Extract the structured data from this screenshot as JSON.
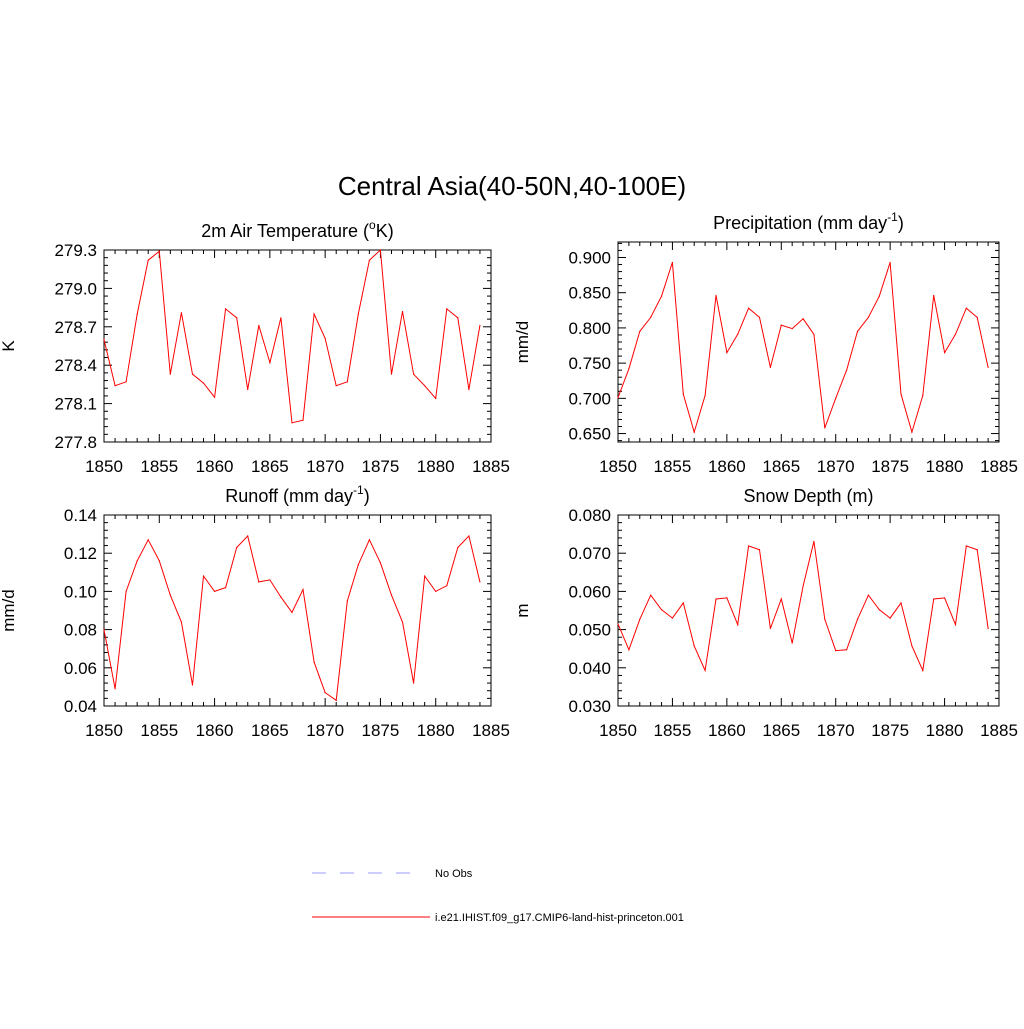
{
  "title": "Central Asia(40-50N,40-100E)",
  "series_color": "#ff0000",
  "obs_color": "#9999ff",
  "legend": {
    "obs_label": "No Obs",
    "model_label": "i.e21.IHIST.f09_g17.CMIP6-land-hist-princeton.001"
  },
  "chart_data": [
    {
      "type": "line",
      "title_main": "2m Air Temperature (",
      "title_sup": "o",
      "title_end": "K)",
      "ylabel": "K",
      "xlim": [
        1850,
        1885
      ],
      "ylim": [
        277.8,
        279.3
      ],
      "xticks": [
        1850,
        1855,
        1860,
        1865,
        1870,
        1875,
        1880,
        1885
      ],
      "xtick_labels": [
        "1850",
        "1855",
        "1860",
        "1865",
        "1870",
        "1875",
        "1880",
        "1885"
      ],
      "yticks": [
        277.8,
        278.1,
        278.4,
        278.7,
        279.0,
        279.3
      ],
      "ytick_labels": [
        "277.8",
        "278.1",
        "278.4",
        "278.7",
        "279.0",
        "279.3"
      ],
      "series": [
        {
          "x": [
            1850,
            1851,
            1852,
            1853,
            1854,
            1855,
            1856,
            1857,
            1858,
            1859,
            1860,
            1861,
            1862,
            1863,
            1864,
            1865,
            1866,
            1867,
            1868,
            1869,
            1870,
            1871,
            1872,
            1873,
            1874,
            1875,
            1876,
            1877,
            1878,
            1879,
            1880,
            1881,
            1882,
            1883,
            1884
          ],
          "values": [
            278.6,
            278.24,
            278.27,
            278.8,
            279.22,
            279.29,
            278.33,
            278.81,
            278.33,
            278.26,
            278.15,
            278.84,
            278.77,
            278.21,
            278.71,
            278.42,
            278.77,
            277.95,
            277.97,
            278.8,
            278.61,
            278.24,
            278.27,
            278.8,
            279.22,
            279.3,
            278.33,
            278.82,
            278.33,
            278.24,
            278.14,
            278.84,
            278.77,
            278.21,
            278.71
          ]
        }
      ]
    },
    {
      "type": "line",
      "title_main": "Precipitation (mm day",
      "title_sup": "-1",
      "title_end": ")",
      "ylabel": "mm/d",
      "xlim": [
        1850,
        1885
      ],
      "ylim": [
        0.638,
        0.922
      ],
      "xticks": [
        1850,
        1855,
        1860,
        1865,
        1870,
        1875,
        1880,
        1885
      ],
      "xtick_labels": [
        "1850",
        "1855",
        "1860",
        "1865",
        "1870",
        "1875",
        "1880",
        "1885"
      ],
      "yticks": [
        0.65,
        0.7,
        0.75,
        0.8,
        0.85,
        0.9
      ],
      "ytick_labels": [
        "0.650",
        "0.700",
        "0.750",
        "0.800",
        "0.850",
        "0.900"
      ],
      "series": [
        {
          "x": [
            1850,
            1851,
            1852,
            1853,
            1854,
            1855,
            1856,
            1857,
            1858,
            1859,
            1860,
            1861,
            1862,
            1863,
            1864,
            1865,
            1866,
            1867,
            1868,
            1869,
            1870,
            1871,
            1872,
            1873,
            1874,
            1875,
            1876,
            1877,
            1878,
            1879,
            1880,
            1881,
            1882,
            1883,
            1884
          ],
          "values": [
            0.701,
            0.742,
            0.795,
            0.815,
            0.845,
            0.893,
            0.706,
            0.652,
            0.704,
            0.846,
            0.765,
            0.791,
            0.828,
            0.815,
            0.744,
            0.804,
            0.799,
            0.813,
            0.791,
            0.658,
            0.7,
            0.74,
            0.795,
            0.815,
            0.845,
            0.893,
            0.706,
            0.652,
            0.704,
            0.846,
            0.765,
            0.791,
            0.828,
            0.815,
            0.744
          ]
        }
      ]
    },
    {
      "type": "line",
      "title_main": "Runoff (mm day",
      "title_sup": "-1",
      "title_end": ")",
      "ylabel": "mm/d",
      "xlim": [
        1850,
        1885
      ],
      "ylim": [
        0.04,
        0.14
      ],
      "xticks": [
        1850,
        1855,
        1860,
        1865,
        1870,
        1875,
        1880,
        1885
      ],
      "xtick_labels": [
        "1850",
        "1855",
        "1860",
        "1865",
        "1870",
        "1875",
        "1880",
        "1885"
      ],
      "yticks": [
        0.04,
        0.06,
        0.08,
        0.1,
        0.12,
        0.14
      ],
      "ytick_labels": [
        "0.04",
        "0.06",
        "0.08",
        "0.10",
        "0.12",
        "0.14"
      ],
      "series": [
        {
          "x": [
            1850,
            1851,
            1852,
            1853,
            1854,
            1855,
            1856,
            1857,
            1858,
            1859,
            1860,
            1861,
            1862,
            1863,
            1864,
            1865,
            1866,
            1867,
            1868,
            1869,
            1870,
            1871,
            1872,
            1873,
            1874,
            1875,
            1876,
            1877,
            1878,
            1879,
            1880,
            1881,
            1882,
            1883,
            1884
          ],
          "values": [
            0.08,
            0.049,
            0.1,
            0.116,
            0.127,
            0.116,
            0.098,
            0.084,
            0.051,
            0.108,
            0.1,
            0.102,
            0.123,
            0.129,
            0.105,
            0.106,
            0.097,
            0.089,
            0.101,
            0.063,
            0.047,
            0.043,
            0.095,
            0.114,
            0.127,
            0.115,
            0.098,
            0.084,
            0.052,
            0.108,
            0.1,
            0.103,
            0.123,
            0.129,
            0.105
          ]
        }
      ]
    },
    {
      "type": "line",
      "title_main": "Snow Depth (m)",
      "title_sup": "",
      "title_end": "",
      "ylabel": "m",
      "xlim": [
        1850,
        1885
      ],
      "ylim": [
        0.03,
        0.08
      ],
      "xticks": [
        1850,
        1855,
        1860,
        1865,
        1870,
        1875,
        1880,
        1885
      ],
      "xtick_labels": [
        "1850",
        "1855",
        "1860",
        "1865",
        "1870",
        "1875",
        "1880",
        "1885"
      ],
      "yticks": [
        0.03,
        0.04,
        0.05,
        0.06,
        0.07,
        0.08
      ],
      "ytick_labels": [
        "0.030",
        "0.040",
        "0.050",
        "0.060",
        "0.070",
        "0.080"
      ],
      "series": [
        {
          "x": [
            1850,
            1851,
            1852,
            1853,
            1854,
            1855,
            1856,
            1857,
            1858,
            1859,
            1860,
            1861,
            1862,
            1863,
            1864,
            1865,
            1866,
            1867,
            1868,
            1869,
            1870,
            1871,
            1872,
            1873,
            1874,
            1875,
            1876,
            1877,
            1878,
            1879,
            1880,
            1881,
            1882,
            1883,
            1884
          ],
          "values": [
            0.0515,
            0.0447,
            0.0527,
            0.059,
            0.0552,
            0.053,
            0.057,
            0.0457,
            0.0393,
            0.058,
            0.0583,
            0.0513,
            0.0719,
            0.0709,
            0.0503,
            0.058,
            0.0465,
            0.0614,
            0.0731,
            0.0527,
            0.0445,
            0.0447,
            0.0527,
            0.059,
            0.0552,
            0.053,
            0.057,
            0.0457,
            0.0393,
            0.058,
            0.0583,
            0.0513,
            0.0719,
            0.0709,
            0.0503
          ]
        }
      ]
    }
  ]
}
